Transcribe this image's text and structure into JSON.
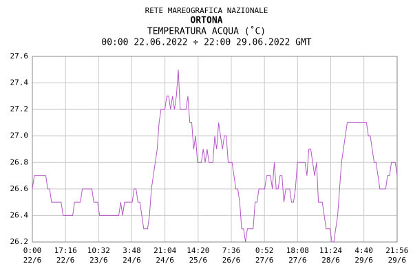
{
  "chart_data": {
    "type": "line",
    "title": "RETE MAREOGRAFICA NAZIONALE",
    "subtitle": "ORTONA",
    "y_label": "TEMPERATURA ACQUA (˚C)",
    "period": "00:00 22.06.2022 ÷ 22:00 29.06.2022 GMT",
    "color": "#b455c8",
    "grid": true,
    "xlim": [
      0,
      190
    ],
    "ylim": [
      26.2,
      27.6
    ],
    "yticks": [
      26.2,
      26.4,
      26.6,
      26.8,
      {
        "value": 27,
        "label": "27.0"
      },
      27.2,
      27.4,
      27.6
    ],
    "xticks": [
      {
        "value": 0,
        "label": "0:00"
      },
      {
        "value": 17.2667,
        "label": "17:16"
      },
      {
        "value": 34.5333,
        "label": "10:32"
      },
      {
        "value": 51.8,
        "label": "3:48"
      },
      {
        "value": 69.0667,
        "label": "21:04"
      },
      {
        "value": 86.3333,
        "label": "14:20"
      },
      {
        "value": 103.6,
        "label": "7:36"
      },
      {
        "value": 120.8667,
        "label": "0:52"
      },
      {
        "value": 138.1333,
        "label": "18:08"
      },
      {
        "value": 155.4,
        "label": "11:24"
      },
      {
        "value": 172.6667,
        "label": "4:40"
      },
      {
        "value": 189.9333,
        "label": "21:56"
      }
    ],
    "xtick_dates": [
      "22/6",
      "22/6",
      "23/6",
      "24/6",
      "24/6",
      "25/6",
      "26/6",
      "27/6",
      "27/6",
      "28/6",
      "29/6",
      "29/6"
    ],
    "x": [
      0,
      1,
      2,
      3,
      4,
      5,
      6,
      7,
      8,
      9,
      10,
      11,
      12,
      13,
      14,
      15,
      16,
      17,
      18,
      19,
      20,
      21,
      22,
      23,
      24,
      25,
      26,
      27,
      28,
      29,
      30,
      31,
      32,
      33,
      34,
      35,
      36,
      37,
      38,
      39,
      40,
      41,
      42,
      43,
      44,
      45,
      46,
      47,
      48,
      49,
      50,
      51,
      52,
      53,
      54,
      55,
      56,
      57,
      58,
      59,
      60,
      61,
      62,
      63,
      64,
      65,
      66,
      67,
      68,
      69,
      70,
      71,
      72,
      73,
      74,
      75,
      76,
      77,
      78,
      79,
      80,
      81,
      82,
      83,
      84,
      85,
      86,
      87,
      88,
      89,
      90,
      91,
      92,
      93,
      94,
      95,
      96,
      97,
      98,
      99,
      100,
      101,
      102,
      103,
      104,
      105,
      106,
      107,
      108,
      109,
      110,
      111,
      112,
      113,
      114,
      115,
      116,
      117,
      118,
      119,
      120,
      121,
      122,
      123,
      124,
      125,
      126,
      127,
      128,
      129,
      130,
      131,
      132,
      133,
      134,
      135,
      136,
      137,
      138,
      139,
      140,
      141,
      142,
      143,
      144,
      145,
      146,
      147,
      148,
      149,
      150,
      151,
      152,
      153,
      154,
      155,
      156,
      157,
      158,
      159,
      160,
      161,
      162,
      163,
      164,
      165,
      166,
      167,
      168,
      169,
      170,
      171,
      172,
      173,
      174,
      175,
      176,
      177,
      178,
      179,
      180,
      181,
      182,
      183,
      184,
      185,
      186,
      187,
      188,
      189,
      190
    ],
    "values": [
      26.6,
      26.7,
      26.7,
      26.7,
      26.7,
      26.7,
      26.7,
      26.7,
      26.6,
      26.6,
      26.5,
      26.5,
      26.5,
      26.5,
      26.5,
      26.5,
      26.4,
      26.4,
      26.4,
      26.4,
      26.4,
      26.4,
      26.5,
      26.5,
      26.5,
      26.5,
      26.6,
      26.6,
      26.6,
      26.6,
      26.6,
      26.6,
      26.5,
      26.5,
      26.5,
      26.4,
      26.4,
      26.4,
      26.4,
      26.4,
      26.4,
      26.4,
      26.4,
      26.4,
      26.4,
      26.4,
      26.5,
      26.4,
      26.5,
      26.5,
      26.5,
      26.5,
      26.5,
      26.6,
      26.6,
      26.5,
      26.5,
      26.4,
      26.3,
      26.3,
      26.3,
      26.4,
      26.6,
      26.7,
      26.8,
      26.9,
      27.1,
      27.2,
      27.2,
      27.2,
      27.3,
      27.3,
      27.2,
      27.3,
      27.2,
      27.3,
      27.5,
      27.2,
      27.2,
      27.2,
      27.2,
      27.3,
      27.1,
      27.1,
      26.9,
      27.0,
      26.8,
      26.8,
      26.8,
      26.9,
      26.8,
      26.9,
      26.8,
      26.8,
      26.8,
      27.0,
      26.9,
      27.1,
      27.0,
      26.9,
      27.0,
      27.0,
      26.8,
      26.8,
      26.8,
      26.7,
      26.6,
      26.6,
      26.5,
      26.3,
      26.3,
      26.2,
      26.3,
      26.3,
      26.3,
      26.3,
      26.5,
      26.5,
      26.6,
      26.6,
      26.6,
      26.6,
      26.7,
      26.7,
      26.7,
      26.6,
      26.8,
      26.6,
      26.6,
      26.7,
      26.7,
      26.5,
      26.6,
      26.6,
      26.6,
      26.5,
      26.5,
      26.6,
      26.8,
      26.8,
      26.8,
      26.8,
      26.8,
      26.7,
      26.9,
      26.9,
      26.8,
      26.7,
      26.8,
      26.5,
      26.5,
      26.5,
      26.4,
      26.3,
      26.3,
      26.3,
      26.2,
      26.2,
      26.3,
      26.4,
      26.6,
      26.8,
      26.9,
      27.0,
      27.1,
      27.1,
      27.1,
      27.1,
      27.1,
      27.1,
      27.1,
      27.1,
      27.1,
      27.1,
      27.1,
      27.0,
      27.0,
      26.9,
      26.8,
      26.8,
      26.7,
      26.6,
      26.6,
      26.6,
      26.6,
      26.7,
      26.7,
      26.8,
      26.8,
      26.8,
      26.7
    ]
  }
}
